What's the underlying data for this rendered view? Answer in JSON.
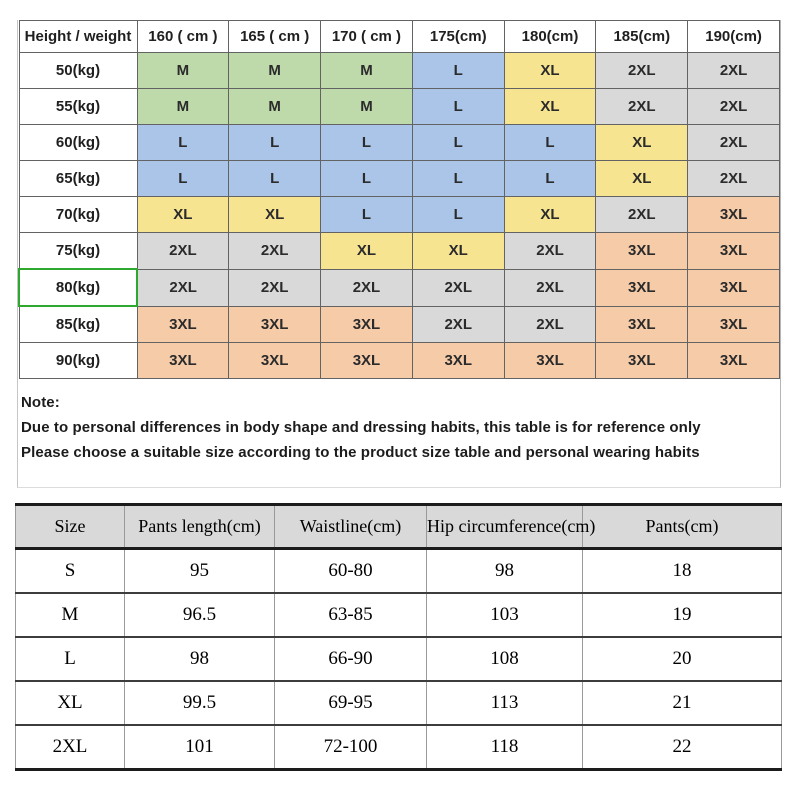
{
  "colors": {
    "green": "#bed9aa",
    "blue": "#abc5e8",
    "yellow": "#f7e491",
    "gray": "#d9d9d9",
    "orange": "#f6cba8",
    "selection_green": "#2fa82f"
  },
  "size_chart": {
    "header": [
      "Height / weight",
      "160 ( cm )",
      "165 ( cm )",
      "170 ( cm )",
      "175(cm)",
      "180(cm)",
      "185(cm)",
      "190(cm)"
    ],
    "rows": [
      {
        "label": "50(kg)",
        "selected": false,
        "cells": [
          [
            "M",
            "green"
          ],
          [
            "M",
            "green"
          ],
          [
            "M",
            "green"
          ],
          [
            "L",
            "blue"
          ],
          [
            "XL",
            "yellow"
          ],
          [
            "2XL",
            "gray"
          ],
          [
            "2XL",
            "gray"
          ]
        ]
      },
      {
        "label": "55(kg)",
        "selected": false,
        "cells": [
          [
            "M",
            "green"
          ],
          [
            "M",
            "green"
          ],
          [
            "M",
            "green"
          ],
          [
            "L",
            "blue"
          ],
          [
            "XL",
            "yellow"
          ],
          [
            "2XL",
            "gray"
          ],
          [
            "2XL",
            "gray"
          ]
        ]
      },
      {
        "label": "60(kg)",
        "selected": false,
        "cells": [
          [
            "L",
            "blue"
          ],
          [
            "L",
            "blue"
          ],
          [
            "L",
            "blue"
          ],
          [
            "L",
            "blue"
          ],
          [
            "L",
            "blue"
          ],
          [
            "XL",
            "yellow"
          ],
          [
            "2XL",
            "gray"
          ]
        ]
      },
      {
        "label": "65(kg)",
        "selected": false,
        "cells": [
          [
            "L",
            "blue"
          ],
          [
            "L",
            "blue"
          ],
          [
            "L",
            "blue"
          ],
          [
            "L",
            "blue"
          ],
          [
            "L",
            "blue"
          ],
          [
            "XL",
            "yellow"
          ],
          [
            "2XL",
            "gray"
          ]
        ]
      },
      {
        "label": "70(kg)",
        "selected": false,
        "cells": [
          [
            "XL",
            "yellow"
          ],
          [
            "XL",
            "yellow"
          ],
          [
            "L",
            "blue"
          ],
          [
            "L",
            "blue"
          ],
          [
            "XL",
            "yellow"
          ],
          [
            "2XL",
            "gray"
          ],
          [
            "3XL",
            "orange"
          ]
        ]
      },
      {
        "label": "75(kg)",
        "selected": false,
        "cells": [
          [
            "2XL",
            "gray"
          ],
          [
            "2XL",
            "gray"
          ],
          [
            "XL",
            "yellow"
          ],
          [
            "XL",
            "yellow"
          ],
          [
            "2XL",
            "gray"
          ],
          [
            "3XL",
            "orange"
          ],
          [
            "3XL",
            "orange"
          ]
        ]
      },
      {
        "label": "80(kg)",
        "selected": true,
        "cells": [
          [
            "2XL",
            "gray"
          ],
          [
            "2XL",
            "gray"
          ],
          [
            "2XL",
            "gray"
          ],
          [
            "2XL",
            "gray"
          ],
          [
            "2XL",
            "gray"
          ],
          [
            "3XL",
            "orange"
          ],
          [
            "3XL",
            "orange"
          ]
        ]
      },
      {
        "label": "85(kg)",
        "selected": false,
        "cells": [
          [
            "3XL",
            "orange"
          ],
          [
            "3XL",
            "orange"
          ],
          [
            "3XL",
            "orange"
          ],
          [
            "2XL",
            "gray"
          ],
          [
            "2XL",
            "gray"
          ],
          [
            "3XL",
            "orange"
          ],
          [
            "3XL",
            "orange"
          ]
        ]
      },
      {
        "label": "90(kg)",
        "selected": false,
        "cells": [
          [
            "3XL",
            "orange"
          ],
          [
            "3XL",
            "orange"
          ],
          [
            "3XL",
            "orange"
          ],
          [
            "3XL",
            "orange"
          ],
          [
            "3XL",
            "orange"
          ],
          [
            "3XL",
            "orange"
          ],
          [
            "3XL",
            "orange"
          ]
        ]
      }
    ]
  },
  "note": {
    "title": "Note:",
    "lines": [
      "Due to personal differences in body shape and dressing habits, this table is for reference only",
      "Please choose a suitable size according to the product size table and personal wearing habits"
    ]
  },
  "measurements": {
    "headers": [
      "Size",
      "Pants length(cm)",
      "Waistline(cm)",
      "Hip circumference(cm)",
      "Pants(cm)"
    ],
    "rows": [
      [
        "S",
        "95",
        "60-80",
        "98",
        "18"
      ],
      [
        "M",
        "96.5",
        "63-85",
        "103",
        "19"
      ],
      [
        "L",
        "98",
        "66-90",
        "108",
        "20"
      ],
      [
        "XL",
        "99.5",
        "69-95",
        "113",
        "21"
      ],
      [
        "2XL",
        "101",
        "72-100",
        "118",
        "22"
      ]
    ]
  }
}
